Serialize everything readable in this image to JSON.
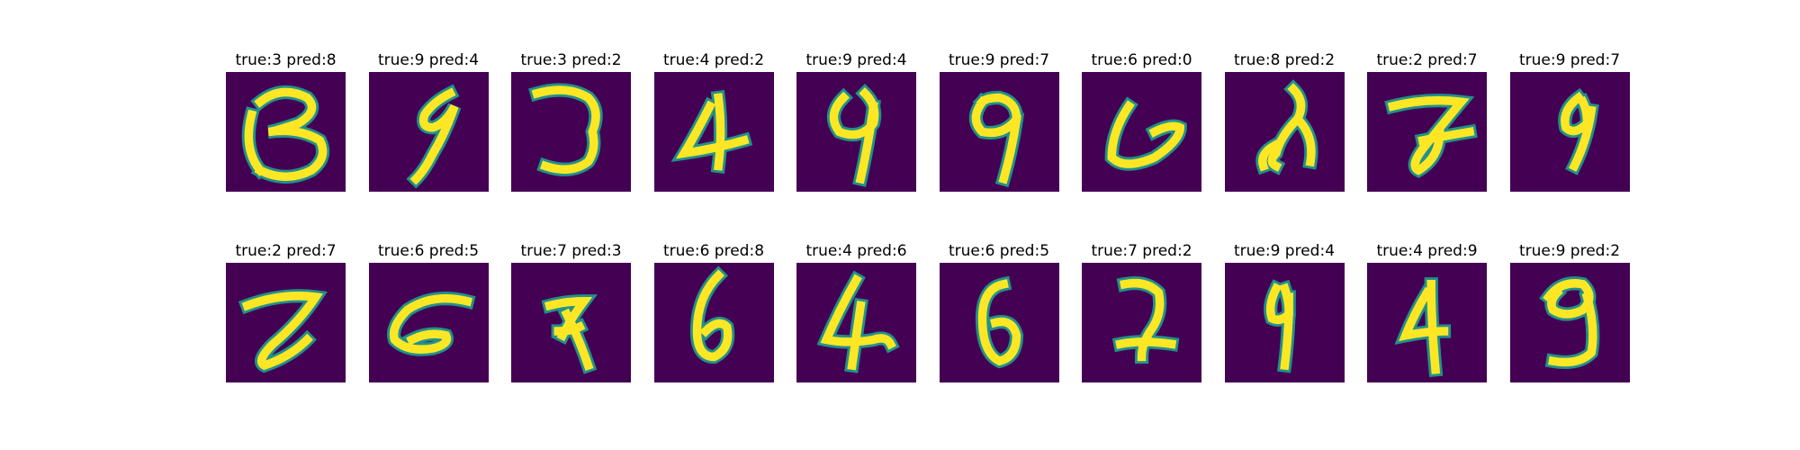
{
  "chart_data": {
    "type": "image-grid",
    "colormap": [
      "#440154",
      "#21918c",
      "#fde725"
    ],
    "background_color": "#440154",
    "panels": [
      {
        "title": "true:3 pred:8",
        "true": 3,
        "pred": 8
      },
      {
        "title": "true:9 pred:4",
        "true": 9,
        "pred": 4
      },
      {
        "title": "true:3 pred:2",
        "true": 3,
        "pred": 2
      },
      {
        "title": "true:4 pred:2",
        "true": 4,
        "pred": 2
      },
      {
        "title": "true:9 pred:4",
        "true": 9,
        "pred": 4
      },
      {
        "title": "true:9 pred:7",
        "true": 9,
        "pred": 7
      },
      {
        "title": "true:6 pred:0",
        "true": 6,
        "pred": 0
      },
      {
        "title": "true:8 pred:2",
        "true": 8,
        "pred": 2
      },
      {
        "title": "true:2 pred:7",
        "true": 2,
        "pred": 7
      },
      {
        "title": "true:9 pred:7",
        "true": 9,
        "pred": 7
      },
      {
        "title": "true:2 pred:7",
        "true": 2,
        "pred": 7
      },
      {
        "title": "true:6 pred:5",
        "true": 6,
        "pred": 5
      },
      {
        "title": "true:7 pred:3",
        "true": 7,
        "pred": 3
      },
      {
        "title": "true:6 pred:8",
        "true": 6,
        "pred": 8
      },
      {
        "title": "true:4 pred:6",
        "true": 4,
        "pred": 6
      },
      {
        "title": "true:6 pred:5",
        "true": 6,
        "pred": 5
      },
      {
        "title": "true:7 pred:2",
        "true": 7,
        "pred": 2
      },
      {
        "title": "true:9 pred:4",
        "true": 9,
        "pred": 4
      },
      {
        "title": "true:4 pred:9",
        "true": 4,
        "pred": 9
      },
      {
        "title": "true:9 pred:2",
        "true": 9,
        "pred": 2
      }
    ]
  }
}
